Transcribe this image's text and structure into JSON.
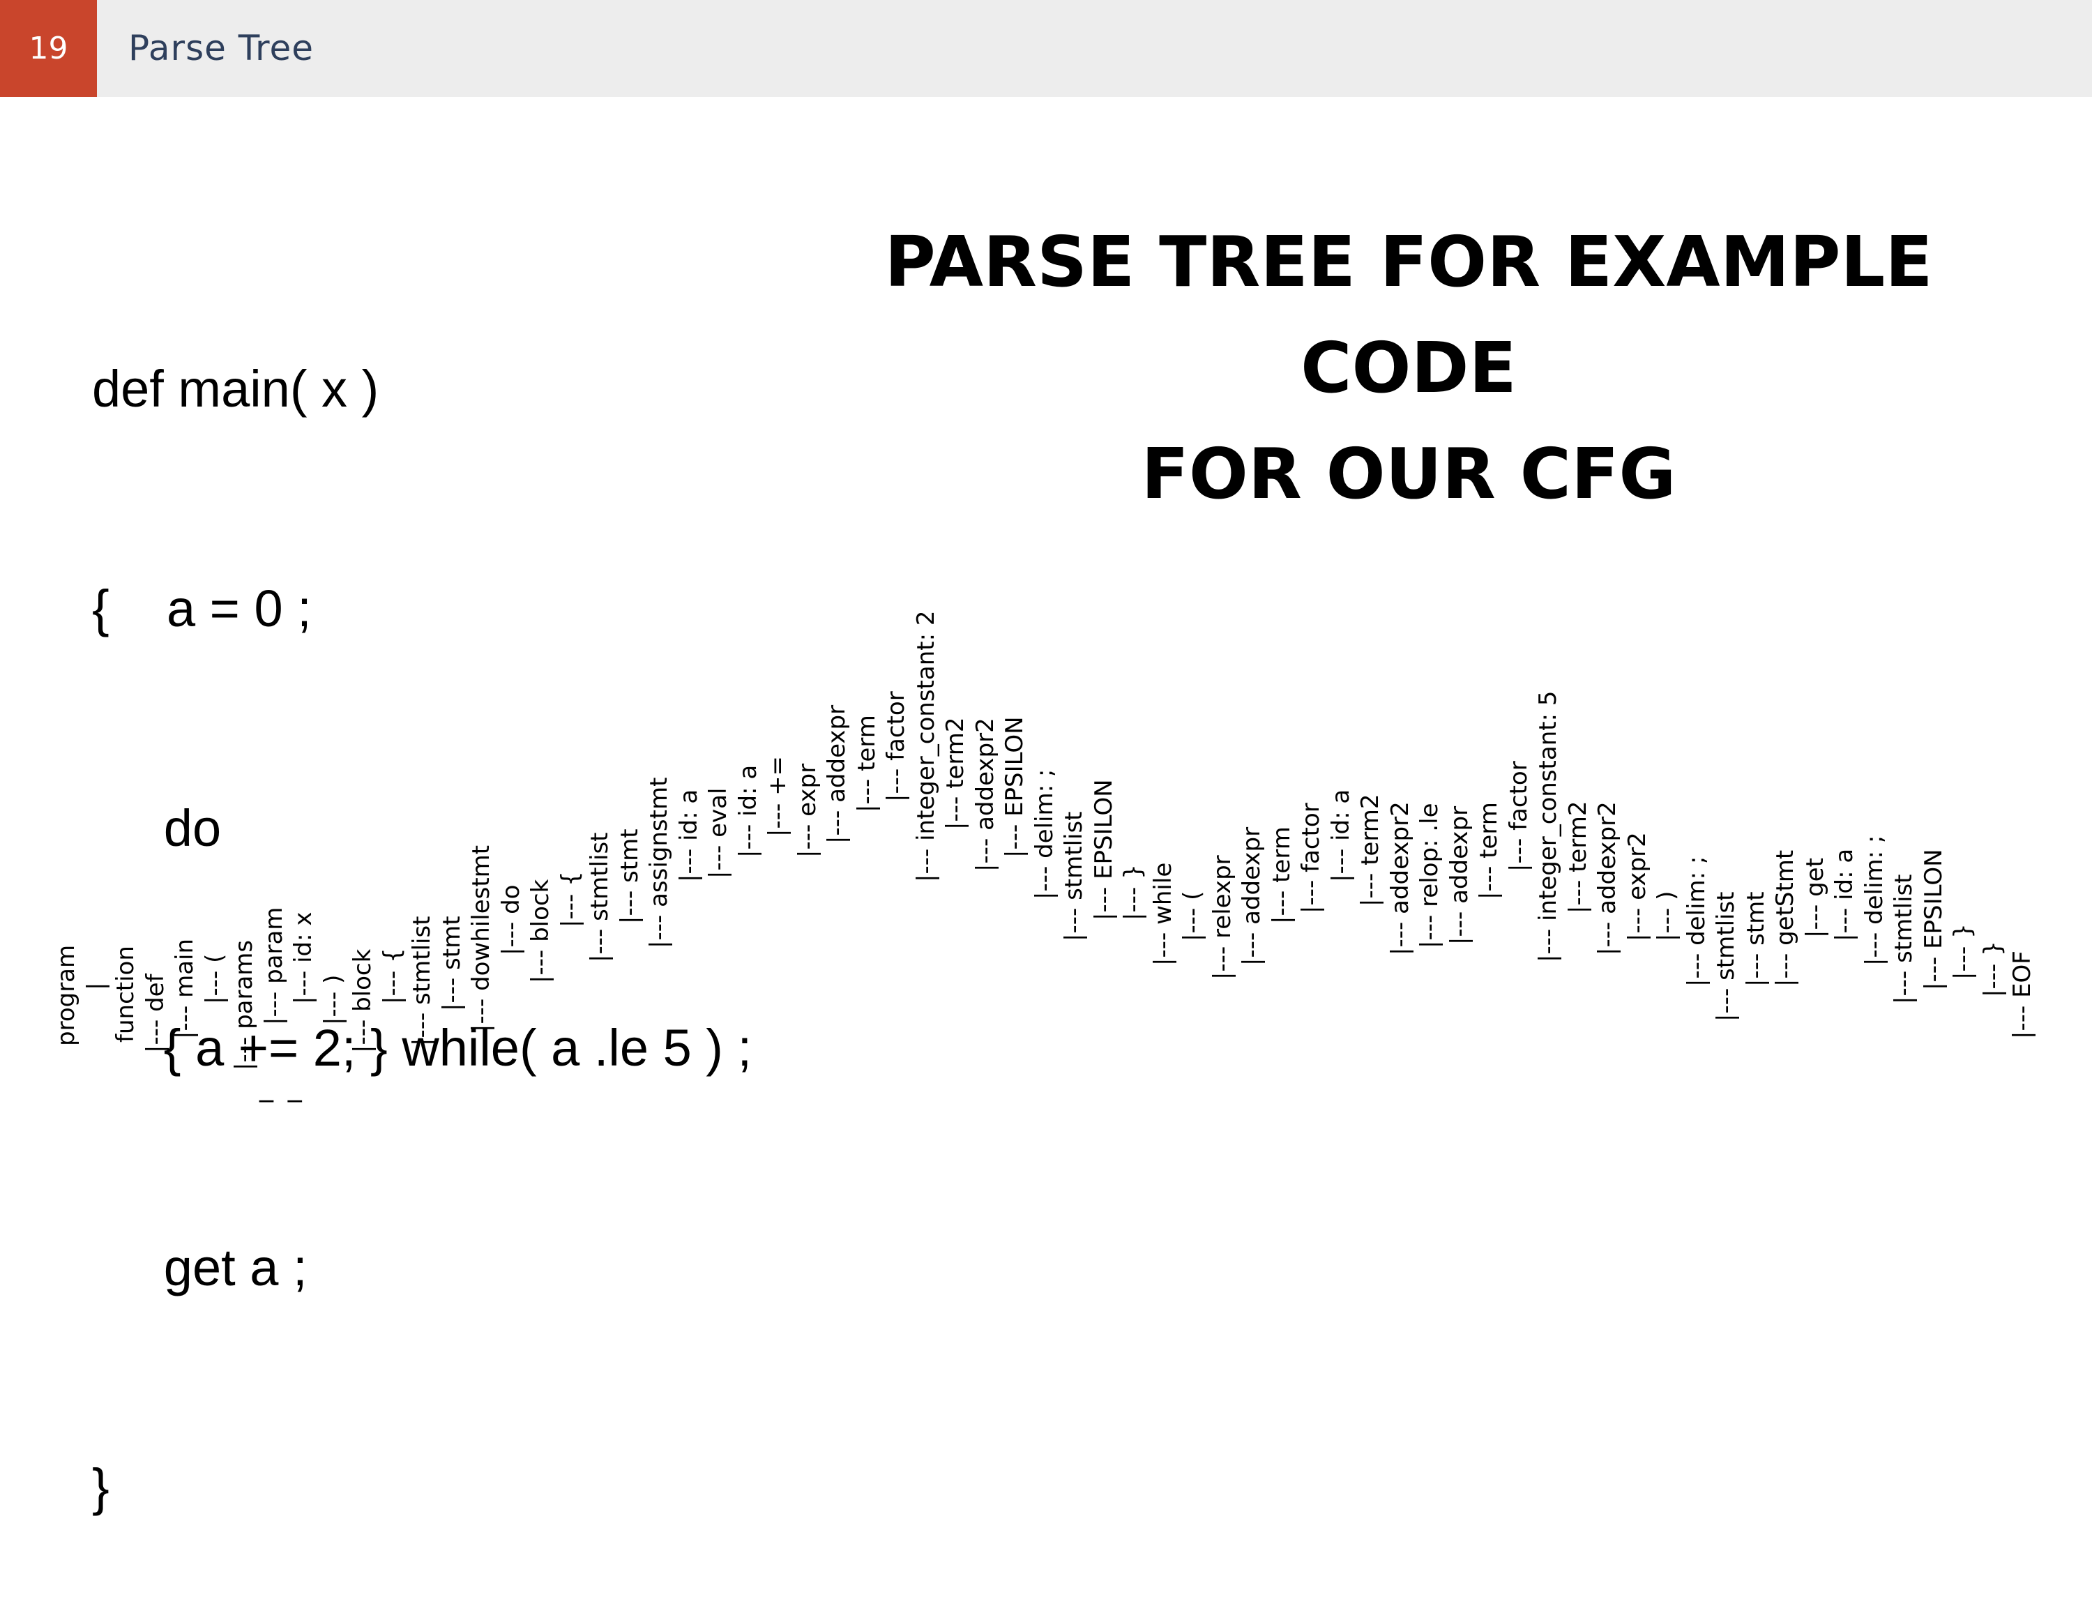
{
  "header": {
    "page_number": "19",
    "title": "Parse Tree"
  },
  "code": {
    "lines": [
      "def main( x )",
      "{    a = 0 ;",
      "     do",
      "     { a += 2; } while( a .le 5 ) ;",
      "     get a ;",
      "}"
    ]
  },
  "title": {
    "line1": "PARSE TREE FOR EXAMPLE CODE",
    "line2": "FOR OUR CFG"
  },
  "tree": {
    "nodes": [
      "program",
      "|",
      "function",
      "|--- def",
      "|--- main",
      "|--- (",
      "|--- params",
      "|--- param",
      "|--- id: x",
      "|--- )",
      "|--- block",
      "|--- {",
      "|--- stmtlist",
      "|--- stmt",
      "|--- dowhilestmt",
      "|--- do",
      "|--- block",
      "|--- {",
      "|--- stmtlist",
      "|--- stmt",
      "|--- assignstmt",
      "|--- id: a",
      "|--- eval",
      "|--- id: a",
      "|--- +=",
      "|--- expr",
      "|--- addexpr",
      "|--- term",
      "|--- factor",
      "|--- integer_constant: 2",
      "|--- term2",
      "|--- addexpr2",
      "|--- EPSILON",
      "|--- delim: ;",
      "|--- stmtlist",
      "|--- EPSILON",
      "|--- }",
      "|--- while",
      "|--- (",
      "|--- relexpr",
      "|--- addexpr",
      "|--- term",
      "|--- factor",
      "|--- id: a",
      "|--- term2",
      "|--- addexpr2",
      "|--- relop: .le",
      "|--- addexpr",
      "|--- term",
      "|--- factor",
      "|--- integer_constant: 5",
      "|--- term2",
      "|--- addexpr2",
      "|--- expr2",
      "|--- )",
      "|--- delim: ;",
      "|--- stmtlist",
      "|--- stmt",
      "|--- getStmt",
      "|--- get",
      "|--- id: a",
      "|--- delim: ;",
      "|--- stmtlist",
      "|--- EPSILON",
      "|--- }",
      "|--- }",
      "|--- EOF"
    ],
    "extra_mark": "_ _"
  }
}
